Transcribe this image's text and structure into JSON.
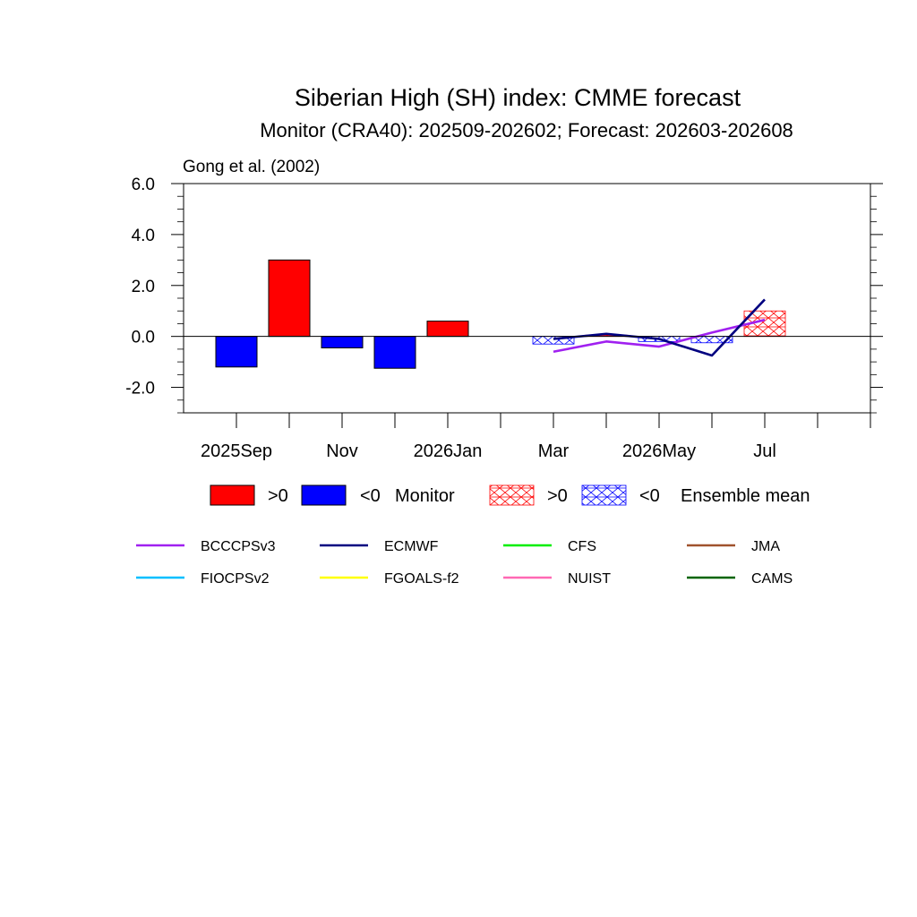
{
  "chart_data": {
    "type": "bar",
    "title": "Siberian High (SH) index: CMME forecast",
    "subtitle": "Monitor (CRA40): 202509-202602; Forecast: 202603-202608",
    "source_note": "Gong et al. (2002)",
    "ylim": [
      -3.0,
      6.0
    ],
    "y_ticks": [
      6.0,
      4.0,
      2.0,
      0.0,
      -2.0
    ],
    "y_tick_labels": [
      "6.0",
      "4.0",
      "2.0",
      "0.0",
      "-2.0"
    ],
    "months": [
      "2025Sep",
      "2025Oct",
      "2025Nov",
      "2025Dec",
      "2026Jan",
      "2026Feb",
      "2026Mar",
      "2026Apr",
      "2026May",
      "2026Jun",
      "2026Jul",
      "2026Aug",
      "2026Sep"
    ],
    "x_tick_labels": [
      {
        "month_index": 0,
        "text": "2025Sep"
      },
      {
        "month_index": 2,
        "text": "Nov"
      },
      {
        "month_index": 4,
        "text": "2026Jan"
      },
      {
        "month_index": 6,
        "text": "Mar"
      },
      {
        "month_index": 8,
        "text": "2026May"
      },
      {
        "month_index": 10,
        "text": "Jul"
      }
    ],
    "monitor": {
      "name": "Monitor",
      "months": [
        "2025Sep",
        "2025Oct",
        "2025Nov",
        "2025Dec",
        "2026Jan"
      ],
      "values": [
        -1.2,
        3.0,
        -0.45,
        -1.25,
        0.6
      ]
    },
    "ensemble_mean": {
      "name": "Ensemble mean",
      "months": [
        "2026Mar",
        "2026Apr",
        "2026May",
        "2026Jun",
        "2026Jul"
      ],
      "values": [
        -0.3,
        0.05,
        -0.2,
        -0.25,
        1.0
      ]
    },
    "series": [
      {
        "name": "BCCCPSv3",
        "color": "#a020f0",
        "months": [
          "2026Mar",
          "2026Apr",
          "2026May",
          "2026Jun",
          "2026Jul"
        ],
        "values": [
          -0.6,
          -0.2,
          -0.4,
          0.15,
          0.65
        ]
      },
      {
        "name": "ECMWF",
        "color": "#000080",
        "months": [
          "2026Mar",
          "2026Apr",
          "2026May",
          "2026Jun",
          "2026Jul"
        ],
        "values": [
          -0.1,
          0.1,
          -0.1,
          -0.75,
          1.45
        ]
      }
    ],
    "colors": {
      "positive": "#ff0000",
      "negative": "#0000ff"
    }
  },
  "legend": {
    "pos_label": ">0",
    "neg_label": "<0",
    "monitor_label": "Monitor",
    "ensemble_label": "Ensemble mean",
    "models": [
      {
        "name": "BCCCPSv3",
        "color": "#a020f0"
      },
      {
        "name": "ECMWF",
        "color": "#000080"
      },
      {
        "name": "CFS",
        "color": "#00ee00"
      },
      {
        "name": "JMA",
        "color": "#a0522d"
      },
      {
        "name": "FIOCPSv2",
        "color": "#00bfff"
      },
      {
        "name": "FGOALS-f2",
        "color": "#ffff00"
      },
      {
        "name": "NUIST",
        "color": "#ff69b4"
      },
      {
        "name": "CAMS",
        "color": "#006400"
      }
    ]
  }
}
